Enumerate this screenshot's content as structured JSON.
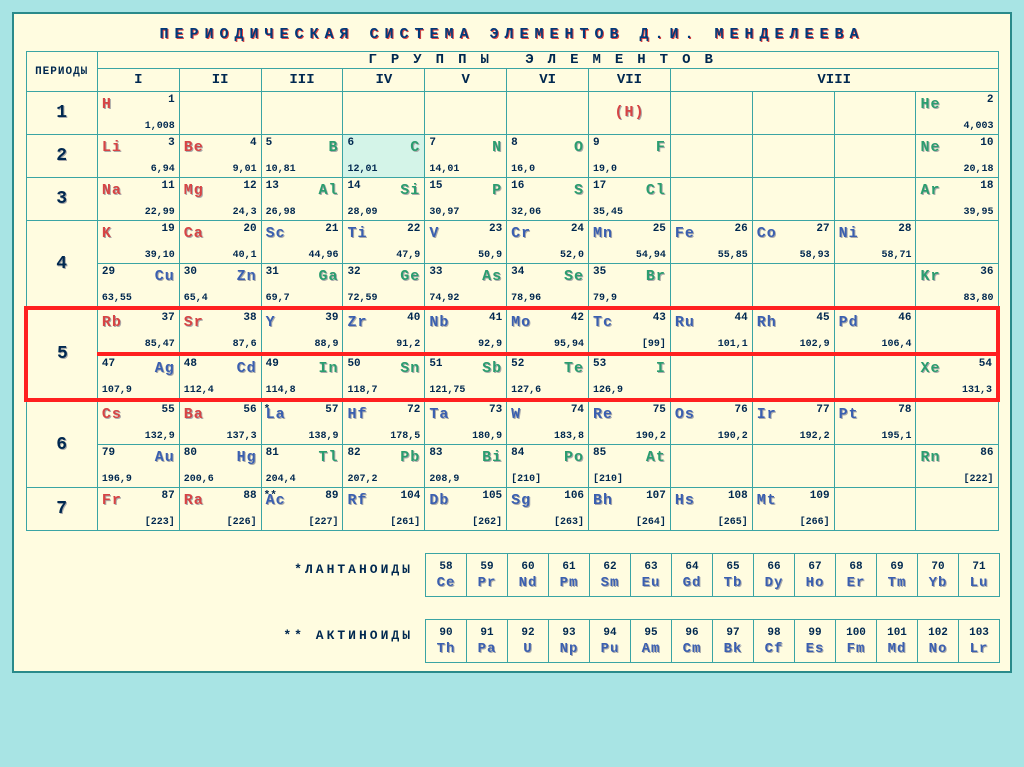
{
  "title": "ПЕРИОДИЧЕСКАЯ СИСТЕМА ЭЛЕМЕНТОВ Д.И. МЕНДЕЛЕЕВА",
  "groups_header": "ГРУППЫ   ЭЛЕМЕНТОВ",
  "periods_label": "ПЕРИОДЫ",
  "group_labels": [
    "I",
    "II",
    "III",
    "IV",
    "V",
    "VI",
    "VII",
    "VIII"
  ],
  "period_labels": [
    "1",
    "2",
    "3",
    "4",
    "5",
    "6",
    "7"
  ],
  "lanthanide_label": "*ЛАНТАНОИДЫ",
  "actinide_label": "** АКТИНОИДЫ",
  "highlight_period": 5,
  "colors": {
    "bg_outer": "#a8e4e4",
    "bg_cell": "#fffce0",
    "border": "#3aa4a4",
    "text_dark": "#002850",
    "red": "#d74444",
    "blue": "#3a5fb0",
    "green": "#2a9d6f",
    "highlight_border": "#ff2020"
  },
  "rows": [
    [
      {
        "sym": "H",
        "n": "1",
        "m": "1,008",
        "c": "red"
      },
      {},
      {},
      {},
      {},
      {},
      {
        "sym": "(H)",
        "c": "red",
        "center": true
      },
      {},
      {},
      {},
      {
        "sym": "He",
        "n": "2",
        "m": "4,003",
        "c": "green"
      }
    ],
    [
      {
        "sym": "Li",
        "n": "3",
        "m": "6,94",
        "c": "red"
      },
      {
        "sym": "Be",
        "n": "4",
        "m": "9,01",
        "c": "red"
      },
      {
        "sym": "B",
        "n": "5",
        "m": "10,81",
        "c": "green",
        "a": "r"
      },
      {
        "sym": "C",
        "n": "6",
        "m": "12,01",
        "c": "green",
        "a": "r",
        "bg": "#d4f4e8"
      },
      {
        "sym": "N",
        "n": "7",
        "m": "14,01",
        "c": "green",
        "a": "r"
      },
      {
        "sym": "O",
        "n": "8",
        "m": "16,0",
        "c": "green",
        "a": "r"
      },
      {
        "sym": "F",
        "n": "9",
        "m": "19,0",
        "c": "green",
        "a": "r"
      },
      {},
      {},
      {},
      {
        "sym": "Ne",
        "n": "10",
        "m": "20,18",
        "c": "green"
      }
    ],
    [
      {
        "sym": "Na",
        "n": "11",
        "m": "22,99",
        "c": "red"
      },
      {
        "sym": "Mg",
        "n": "12",
        "m": "24,3",
        "c": "red"
      },
      {
        "sym": "Al",
        "n": "13",
        "m": "26,98",
        "c": "green",
        "a": "r"
      },
      {
        "sym": "Si",
        "n": "14",
        "m": "28,09",
        "c": "green",
        "a": "r"
      },
      {
        "sym": "P",
        "n": "15",
        "m": "30,97",
        "c": "green",
        "a": "r"
      },
      {
        "sym": "S",
        "n": "16",
        "m": "32,06",
        "c": "green",
        "a": "r"
      },
      {
        "sym": "Cl",
        "n": "17",
        "m": "35,45",
        "c": "green",
        "a": "r"
      },
      {},
      {},
      {},
      {
        "sym": "Ar",
        "n": "18",
        "m": "39,95",
        "c": "green"
      }
    ],
    [
      {
        "sym": "K",
        "n": "19",
        "m": "39,10",
        "c": "red"
      },
      {
        "sym": "Ca",
        "n": "20",
        "m": "40,1",
        "c": "red"
      },
      {
        "sym": "Sc",
        "n": "21",
        "m": "44,96",
        "c": "blue"
      },
      {
        "sym": "Ti",
        "n": "22",
        "m": "47,9",
        "c": "blue"
      },
      {
        "sym": "V",
        "n": "23",
        "m": "50,9",
        "c": "blue"
      },
      {
        "sym": "Cr",
        "n": "24",
        "m": "52,0",
        "c": "blue"
      },
      {
        "sym": "Mn",
        "n": "25",
        "m": "54,94",
        "c": "blue"
      },
      {
        "sym": "Fe",
        "n": "26",
        "m": "55,85",
        "c": "blue"
      },
      {
        "sym": "Co",
        "n": "27",
        "m": "58,93",
        "c": "blue"
      },
      {
        "sym": "Ni",
        "n": "28",
        "m": "58,71",
        "c": "blue"
      },
      {}
    ],
    [
      {
        "sym": "Cu",
        "n": "29",
        "m": "63,55",
        "c": "blue",
        "a": "r"
      },
      {
        "sym": "Zn",
        "n": "30",
        "m": "65,4",
        "c": "blue",
        "a": "r"
      },
      {
        "sym": "Ga",
        "n": "31",
        "m": "69,7",
        "c": "green",
        "a": "r"
      },
      {
        "sym": "Ge",
        "n": "32",
        "m": "72,59",
        "c": "green",
        "a": "r"
      },
      {
        "sym": "As",
        "n": "33",
        "m": "74,92",
        "c": "green",
        "a": "r"
      },
      {
        "sym": "Se",
        "n": "34",
        "m": "78,96",
        "c": "green",
        "a": "r"
      },
      {
        "sym": "Br",
        "n": "35",
        "m": "79,9",
        "c": "green",
        "a": "r"
      },
      {},
      {},
      {},
      {
        "sym": "Kr",
        "n": "36",
        "m": "83,80",
        "c": "green"
      }
    ],
    [
      {
        "sym": "Rb",
        "n": "37",
        "m": "85,47",
        "c": "red"
      },
      {
        "sym": "Sr",
        "n": "38",
        "m": "87,6",
        "c": "red"
      },
      {
        "sym": "Y",
        "n": "39",
        "m": "88,9",
        "c": "blue"
      },
      {
        "sym": "Zr",
        "n": "40",
        "m": "91,2",
        "c": "blue"
      },
      {
        "sym": "Nb",
        "n": "41",
        "m": "92,9",
        "c": "blue"
      },
      {
        "sym": "Mo",
        "n": "42",
        "m": "95,94",
        "c": "blue"
      },
      {
        "sym": "Tc",
        "n": "43",
        "m": "[99]",
        "c": "blue"
      },
      {
        "sym": "Ru",
        "n": "44",
        "m": "101,1",
        "c": "blue"
      },
      {
        "sym": "Rh",
        "n": "45",
        "m": "102,9",
        "c": "blue"
      },
      {
        "sym": "Pd",
        "n": "46",
        "m": "106,4",
        "c": "blue"
      },
      {}
    ],
    [
      {
        "sym": "Ag",
        "n": "47",
        "m": "107,9",
        "c": "blue",
        "a": "r"
      },
      {
        "sym": "Cd",
        "n": "48",
        "m": "112,4",
        "c": "blue",
        "a": "r"
      },
      {
        "sym": "In",
        "n": "49",
        "m": "114,8",
        "c": "green",
        "a": "r"
      },
      {
        "sym": "Sn",
        "n": "50",
        "m": "118,7",
        "c": "green",
        "a": "r"
      },
      {
        "sym": "Sb",
        "n": "51",
        "m": "121,75",
        "c": "green",
        "a": "r"
      },
      {
        "sym": "Te",
        "n": "52",
        "m": "127,6",
        "c": "green",
        "a": "r"
      },
      {
        "sym": "I",
        "n": "53",
        "m": "126,9",
        "c": "green",
        "a": "r"
      },
      {},
      {},
      {},
      {
        "sym": "Xe",
        "n": "54",
        "m": "131,3",
        "c": "green"
      }
    ],
    [
      {
        "sym": "Cs",
        "n": "55",
        "m": "132,9",
        "c": "red"
      },
      {
        "sym": "Ba",
        "n": "56",
        "m": "137,3",
        "c": "red"
      },
      {
        "sym": "La",
        "n": "57",
        "m": "138,9",
        "c": "blue",
        "star": "*"
      },
      {
        "sym": "Hf",
        "n": "72",
        "m": "178,5",
        "c": "blue"
      },
      {
        "sym": "Ta",
        "n": "73",
        "m": "180,9",
        "c": "blue"
      },
      {
        "sym": "W",
        "n": "74",
        "m": "183,8",
        "c": "blue"
      },
      {
        "sym": "Re",
        "n": "75",
        "m": "190,2",
        "c": "blue"
      },
      {
        "sym": "Os",
        "n": "76",
        "m": "190,2",
        "c": "blue"
      },
      {
        "sym": "Ir",
        "n": "77",
        "m": "192,2",
        "c": "blue"
      },
      {
        "sym": "Pt",
        "n": "78",
        "m": "195,1",
        "c": "blue"
      },
      {}
    ],
    [
      {
        "sym": "Au",
        "n": "79",
        "m": "196,9",
        "c": "blue",
        "a": "r"
      },
      {
        "sym": "Hg",
        "n": "80",
        "m": "200,6",
        "c": "blue",
        "a": "r"
      },
      {
        "sym": "Tl",
        "n": "81",
        "m": "204,4",
        "c": "green",
        "a": "r"
      },
      {
        "sym": "Pb",
        "n": "82",
        "m": "207,2",
        "c": "green",
        "a": "r"
      },
      {
        "sym": "Bi",
        "n": "83",
        "m": "208,9",
        "c": "green",
        "a": "r"
      },
      {
        "sym": "Po",
        "n": "84",
        "m": "[210]",
        "c": "green",
        "a": "r"
      },
      {
        "sym": "At",
        "n": "85",
        "m": "[210]",
        "c": "green",
        "a": "r"
      },
      {},
      {},
      {},
      {
        "sym": "Rn",
        "n": "86",
        "m": "[222]",
        "c": "green"
      }
    ],
    [
      {
        "sym": "Fr",
        "n": "87",
        "m": "[223]",
        "c": "red"
      },
      {
        "sym": "Ra",
        "n": "88",
        "m": "[226]",
        "c": "red"
      },
      {
        "sym": "Ac",
        "n": "89",
        "m": "[227]",
        "c": "blue",
        "star": "**"
      },
      {
        "sym": "Rf",
        "n": "104",
        "m": "[261]",
        "c": "blue"
      },
      {
        "sym": "Db",
        "n": "105",
        "m": "[262]",
        "c": "blue"
      },
      {
        "sym": "Sg",
        "n": "106",
        "m": "[263]",
        "c": "blue"
      },
      {
        "sym": "Bh",
        "n": "107",
        "m": "[264]",
        "c": "blue"
      },
      {
        "sym": "Hs",
        "n": "108",
        "m": "[265]",
        "c": "blue"
      },
      {
        "sym": "Mt",
        "n": "109",
        "m": "[266]",
        "c": "blue"
      },
      {},
      {}
    ]
  ],
  "period_row_map": [
    [
      0
    ],
    [
      1
    ],
    [
      2
    ],
    [
      3,
      4
    ],
    [
      5,
      6
    ],
    [
      7,
      8
    ],
    [
      9
    ]
  ],
  "lanthanides": [
    {
      "n": "58",
      "sym": "Ce",
      "c": "blue"
    },
    {
      "n": "59",
      "sym": "Pr",
      "c": "blue"
    },
    {
      "n": "60",
      "sym": "Nd",
      "c": "blue"
    },
    {
      "n": "61",
      "sym": "Pm",
      "c": "blue"
    },
    {
      "n": "62",
      "sym": "Sm",
      "c": "blue"
    },
    {
      "n": "63",
      "sym": "Eu",
      "c": "blue"
    },
    {
      "n": "64",
      "sym": "Gd",
      "c": "blue"
    },
    {
      "n": "65",
      "sym": "Tb",
      "c": "blue"
    },
    {
      "n": "66",
      "sym": "Dy",
      "c": "blue"
    },
    {
      "n": "67",
      "sym": "Ho",
      "c": "blue"
    },
    {
      "n": "68",
      "sym": "Er",
      "c": "blue"
    },
    {
      "n": "69",
      "sym": "Tm",
      "c": "blue"
    },
    {
      "n": "70",
      "sym": "Yb",
      "c": "blue"
    },
    {
      "n": "71",
      "sym": "Lu",
      "c": "blue"
    }
  ],
  "actinides": [
    {
      "n": "90",
      "sym": "Th",
      "c": "blue"
    },
    {
      "n": "91",
      "sym": "Pa",
      "c": "blue"
    },
    {
      "n": "92",
      "sym": "U",
      "c": "blue"
    },
    {
      "n": "93",
      "sym": "Np",
      "c": "blue"
    },
    {
      "n": "94",
      "sym": "Pu",
      "c": "blue"
    },
    {
      "n": "95",
      "sym": "Am",
      "c": "blue"
    },
    {
      "n": "96",
      "sym": "Cm",
      "c": "blue"
    },
    {
      "n": "97",
      "sym": "Bk",
      "c": "blue"
    },
    {
      "n": "98",
      "sym": "Cf",
      "c": "blue"
    },
    {
      "n": "99",
      "sym": "Es",
      "c": "blue"
    },
    {
      "n": "100",
      "sym": "Fm",
      "c": "blue"
    },
    {
      "n": "101",
      "sym": "Md",
      "c": "blue"
    },
    {
      "n": "102",
      "sym": "No",
      "c": "blue"
    },
    {
      "n": "103",
      "sym": "Lr",
      "c": "blue"
    }
  ]
}
